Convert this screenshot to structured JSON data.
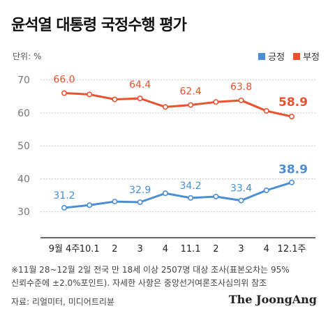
{
  "title": "윤석열 대통령 국정수행 평가",
  "unit_label": "단위: %",
  "legend": [
    {
      "label": "긍정",
      "color": "#4a8fd4"
    },
    {
      "label": "부정",
      "color": "#e8522e"
    }
  ],
  "chart_data": {
    "type": "line",
    "categories": [
      "9월 4주",
      "10.1",
      "2",
      "3",
      "4",
      "11.1",
      "2",
      "3",
      "4",
      "12.1주"
    ],
    "ylim": [
      20,
      75
    ],
    "yticks": [
      30,
      40,
      50,
      60,
      70
    ],
    "grid": true,
    "legend_position": "top-right",
    "series": [
      {
        "name": "부정",
        "color": "#e8522e",
        "values": [
          66.0,
          65.6,
          64.1,
          64.4,
          61.8,
          62.4,
          63.3,
          63.8,
          60.6,
          58.9
        ],
        "labels": [
          "66.0",
          "",
          "",
          "64.4",
          "",
          "62.4",
          "",
          "63.8",
          "",
          "58.9"
        ]
      },
      {
        "name": "긍정",
        "color": "#4a8fd4",
        "values": [
          31.2,
          32.0,
          33.1,
          32.9,
          35.6,
          34.2,
          34.6,
          33.4,
          36.5,
          38.9
        ],
        "labels": [
          "31.2",
          "",
          "",
          "32.9",
          "",
          "34.2",
          "",
          "33.4",
          "",
          "38.9"
        ]
      }
    ]
  },
  "footnote": [
    "※11월 28~12월 2일 전국 만 18세 이상 2507명 대상 조사(표본오차는 95%",
    "신뢰수준에 ±2.0%포인트). 자세한 사항은 중앙선거여론조사심의위 참조"
  ],
  "source": "자료: 리얼미터, 미디어트리뷴",
  "brand": "The JoongAng"
}
